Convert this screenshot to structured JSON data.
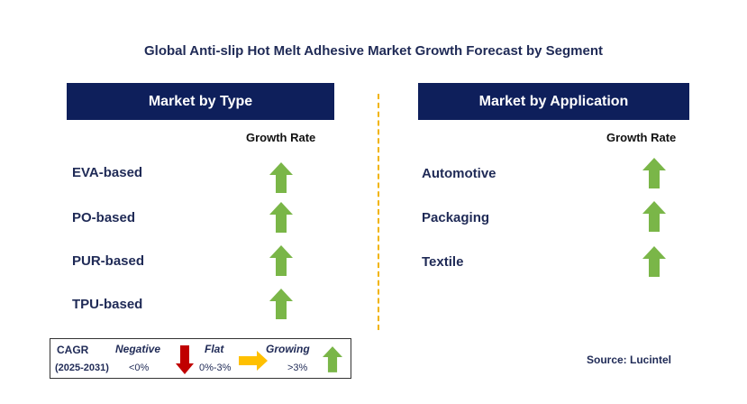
{
  "title": "Global Anti-slip Hot Melt Adhesive Market Growth Forecast by Segment",
  "left_panel": {
    "header": "Market by Type",
    "growth_label": "Growth Rate",
    "items": [
      {
        "label": "EVA-based",
        "trend": "growing"
      },
      {
        "label": "PO-based",
        "trend": "growing"
      },
      {
        "label": "PUR-based",
        "trend": "growing"
      },
      {
        "label": "TPU-based",
        "trend": "growing"
      }
    ]
  },
  "right_panel": {
    "header": "Market by Application",
    "growth_label": "Growth Rate",
    "items": [
      {
        "label": "Automotive",
        "trend": "growing"
      },
      {
        "label": "Packaging",
        "trend": "growing"
      },
      {
        "label": "Textile",
        "trend": "growing"
      }
    ]
  },
  "legend": {
    "cagr_label": "CAGR",
    "period": "(2025-2031)",
    "negative": {
      "label": "Negative",
      "range": "<0%"
    },
    "flat": {
      "label": "Flat",
      "range": "0%-3%"
    },
    "growing": {
      "label": "Growing",
      "range": ">3%"
    }
  },
  "source": "Source: Lucintel",
  "colors": {
    "header_bg": "#0e1f5b",
    "growing": "#7ab648",
    "negative": "#c00000",
    "flat": "#ffc000",
    "divider": "#f2b400"
  }
}
